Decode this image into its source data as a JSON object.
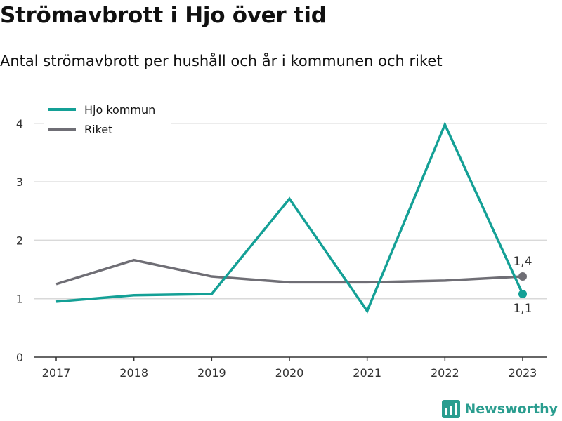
{
  "header": {
    "title": "Strömavbrott i Hjo över tid",
    "subtitle": "Antal strömavbrott per hushåll och år i kommunen och riket"
  },
  "brand": {
    "name": "Newsworthy",
    "color": "#2a9d8f"
  },
  "chart_data": {
    "type": "line",
    "title": "Strömavbrott i Hjo över tid",
    "subtitle": "Antal strömavbrott per hushåll och år i kommunen och riket",
    "xlabel": "",
    "ylabel": "",
    "categories": [
      "2017",
      "2018",
      "2019",
      "2020",
      "2021",
      "2022",
      "2023"
    ],
    "ylim": [
      0,
      4.3
    ],
    "yticks": [
      0,
      1,
      2,
      3,
      4
    ],
    "ytick_labels": [
      "0",
      "1",
      "2",
      "3",
      "4"
    ],
    "grid": true,
    "legend_position": "top-left",
    "series": [
      {
        "name": "Hjo kommun",
        "color": "#14a096",
        "values": [
          0.95,
          1.06,
          1.08,
          2.71,
          0.79,
          3.98,
          1.08
        ],
        "end_label": "1,1"
      },
      {
        "name": "Riket",
        "color": "#6f6e75",
        "values": [
          1.25,
          1.66,
          1.38,
          1.28,
          1.28,
          1.31,
          1.38
        ],
        "end_label": "1,4"
      }
    ]
  }
}
